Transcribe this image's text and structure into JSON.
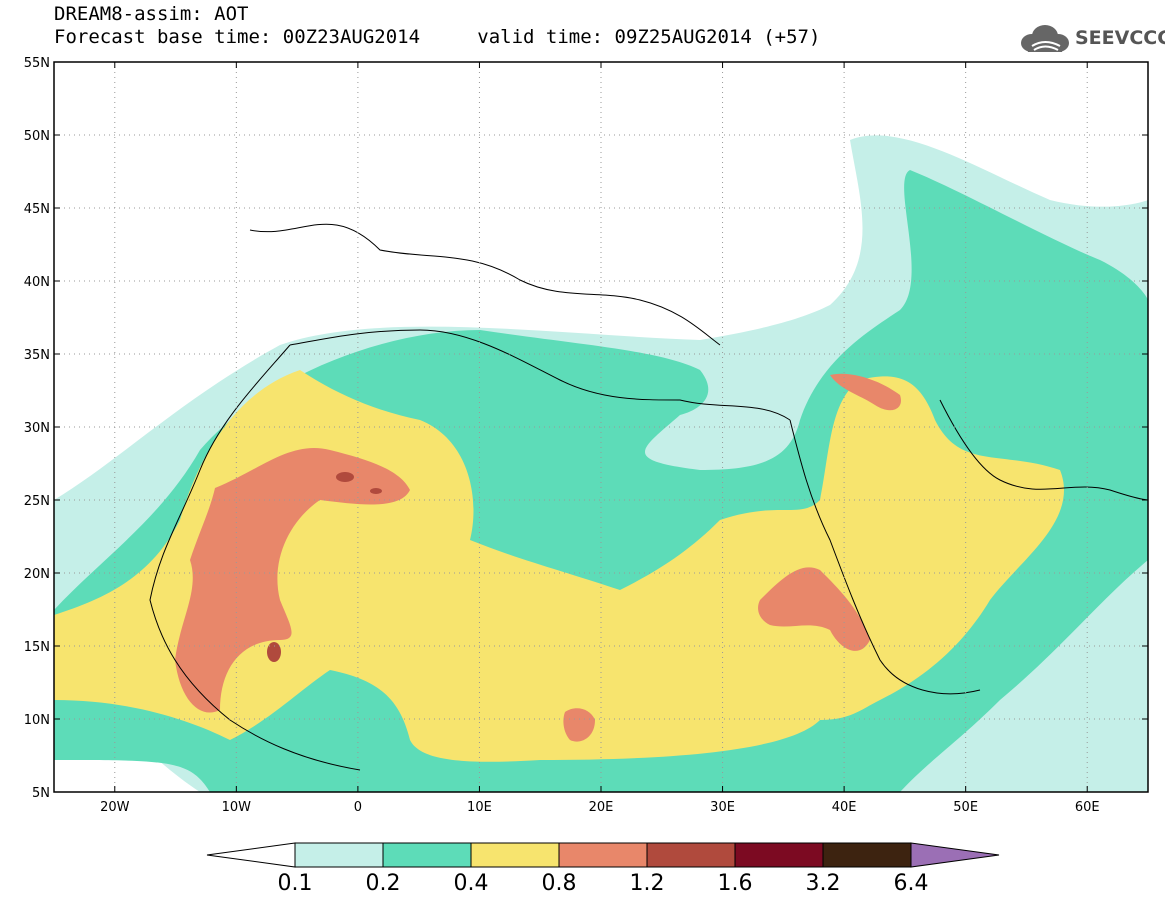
{
  "header": {
    "title_line1": "DREAM8-assim: AOT",
    "base_time": "Forecast base time: 00Z23AUG2014",
    "valid_time": "valid time: 09Z25AUG2014 (+57)",
    "logo_text": "SEEVCCC",
    "logo_icon": "cloud-icon"
  },
  "map": {
    "lon_range": [
      -25,
      65
    ],
    "lat_range": [
      5,
      55
    ],
    "lon_ticks": [
      {
        "value": -20,
        "label": "20W"
      },
      {
        "value": -10,
        "label": "10W"
      },
      {
        "value": 0,
        "label": "0"
      },
      {
        "value": 10,
        "label": "10E"
      },
      {
        "value": 20,
        "label": "20E"
      },
      {
        "value": 30,
        "label": "30E"
      },
      {
        "value": 40,
        "label": "40E"
      },
      {
        "value": 50,
        "label": "50E"
      },
      {
        "value": 60,
        "label": "60E"
      }
    ],
    "lat_ticks": [
      {
        "value": 5,
        "label": "5N"
      },
      {
        "value": 10,
        "label": "10N"
      },
      {
        "value": 15,
        "label": "15N"
      },
      {
        "value": 20,
        "label": "20N"
      },
      {
        "value": 25,
        "label": "25N"
      },
      {
        "value": 30,
        "label": "30N"
      },
      {
        "value": 35,
        "label": "35N"
      },
      {
        "value": 40,
        "label": "40N"
      },
      {
        "value": 45,
        "label": "45N"
      },
      {
        "value": 50,
        "label": "50N"
      },
      {
        "value": 55,
        "label": "55N"
      }
    ],
    "grid": true
  },
  "colorbar": {
    "levels": [
      "0.1",
      "0.2",
      "0.4",
      "0.8",
      "1.2",
      "1.6",
      "3.2",
      "6.4"
    ],
    "colors": [
      "#ffffff",
      "#c5efe8",
      "#5ddcb8",
      "#f7e46e",
      "#e8876a",
      "#b04a3d",
      "#7c0a22",
      "#3d2310",
      "#9b6fb5"
    ]
  }
}
